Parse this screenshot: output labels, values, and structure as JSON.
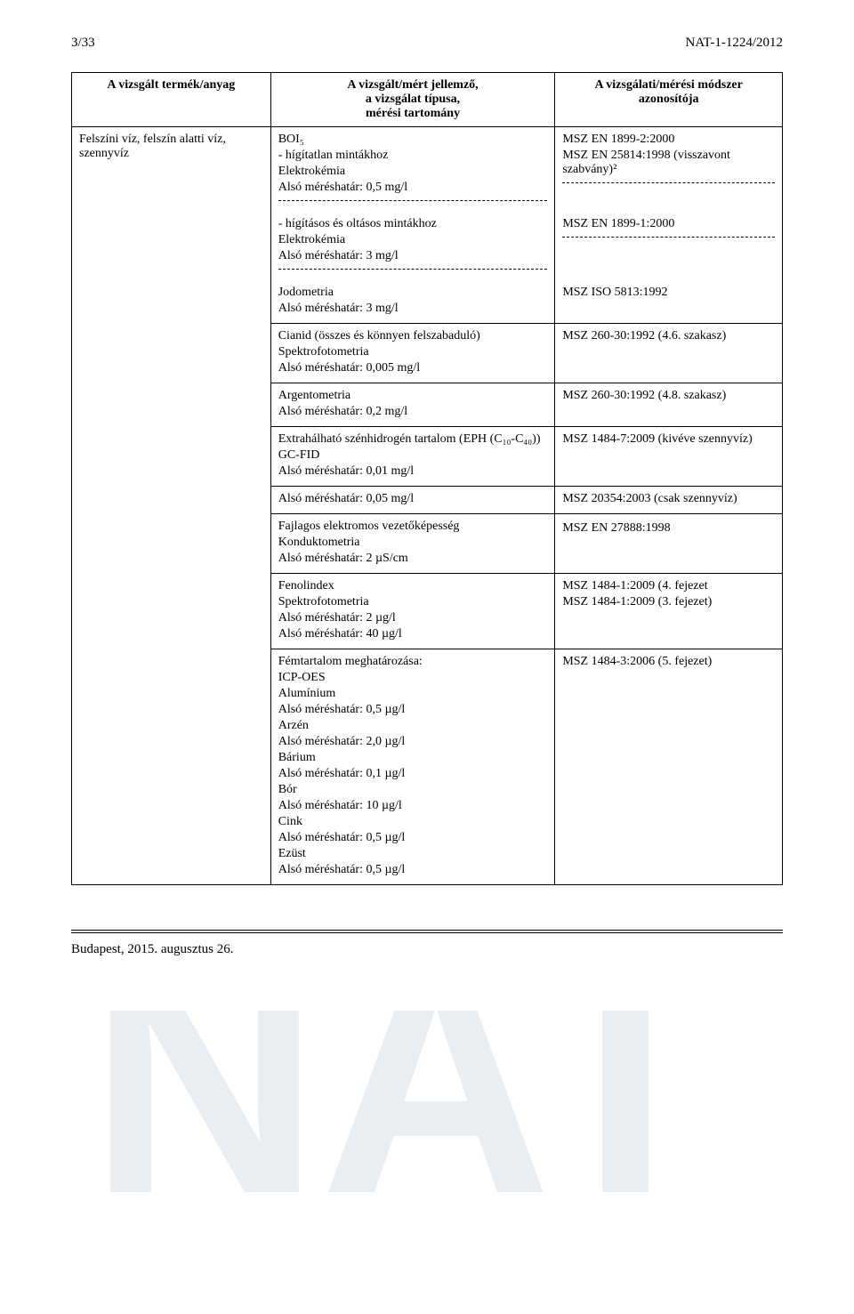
{
  "header": {
    "page": "3/33",
    "doc_no": "NAT-1-1224/2012"
  },
  "table": {
    "head": {
      "c1": "A vizsgált termék/anyag",
      "c2": "A vizsgált/mért jellemző,\na vizsgálat típusa,\nmérési tartomány",
      "c3": "A vizsgálati/mérési módszer\nazonosítója"
    },
    "product": "Felszíni víz, felszín alatti víz,\nszennyvíz",
    "rows": [
      {
        "left_lines": [
          "BOI₅",
          "- hígítatlan mintákhoz",
          "Elektrokémia",
          "Alsó méréshatár: 0,5 mg/l"
        ],
        "right_lines": [
          "MSZ EN 1899-2:2000",
          "MSZ EN 25814:1998 (visszavont szabvány)²"
        ],
        "dashed_after": true
      },
      {
        "left_lines": [
          "- hígításos és oltásos mintákhoz",
          "Elektrokémia",
          "Alsó méréshatár: 3 mg/l"
        ],
        "right_lines": [
          "MSZ EN 1899-1:2000"
        ],
        "dashed_after": true
      },
      {
        "left_lines": [
          "Jodometria",
          "Alsó méréshatár: 3 mg/l"
        ],
        "right_lines": [
          "MSZ ISO 5813:1992"
        ]
      },
      {
        "left_lines": [
          "Cianid (összes és könnyen felszabaduló)",
          "Spektrofotometria",
          "Alsó méréshatár: 0,005 mg/l"
        ],
        "right_lines": [
          "MSZ 260-30:1992 (4.6. szakasz)"
        ]
      },
      {
        "left_lines": [
          "Argentometria",
          "Alsó méréshatár: 0,2 mg/l"
        ],
        "right_lines": [
          "MSZ 260-30:1992 (4.8. szakasz)"
        ]
      },
      {
        "left_lines": [
          "Extrahálható szénhidrogén tartalom (EPH (C₁₀-C₄₀))",
          "GC-FID",
          "Alsó méréshatár: 0,01 mg/l"
        ],
        "right_lines": [
          "MSZ 1484-7:2009 (kivéve szennyvíz)"
        ]
      },
      {
        "left_lines": [
          "Alsó méréshatár: 0,05 mg/l"
        ],
        "right_lines": [
          "MSZ 20354:2003 (csak szennyvíz)"
        ]
      },
      {
        "left_lines": [
          "Fajlagos elektromos vezetőképesség",
          "Konduktometria",
          "Alsó méréshatár: 2 µS/cm"
        ],
        "right_lines": [
          "",
          "MSZ EN 27888:1998"
        ]
      },
      {
        "left_lines": [
          "Fenolindex",
          "Spektrofotometria",
          "Alsó méréshatár: 2 µg/l",
          "Alsó méréshatár: 40 µg/l"
        ],
        "right_lines": [
          "MSZ 1484-1:2009 (4. fejezet",
          "MSZ 1484-1:2009 (3. fejezet)"
        ]
      },
      {
        "left_lines": [
          "Fémtartalom meghatározása:",
          "ICP-OES",
          "Alumínium",
          "Alsó méréshatár: 0,5 µg/l",
          "Arzén",
          "Alsó méréshatár: 2,0 µg/l",
          "Bárium",
          "Alsó méréshatár: 0,1 µg/l",
          "Bór",
          "Alsó méréshatár: 10 µg/l",
          "Cink",
          "Alsó méréshatár: 0,5 µg/l",
          "Ezüst",
          "Alsó méréshatár: 0,5 µg/l"
        ],
        "right_lines": [
          "MSZ 1484-3:2006 (5. fejezet)"
        ]
      }
    ]
  },
  "footer": "Budapest, 2015. augusztus 26.",
  "watermark_colors": {
    "fill": "#e9eef3"
  }
}
